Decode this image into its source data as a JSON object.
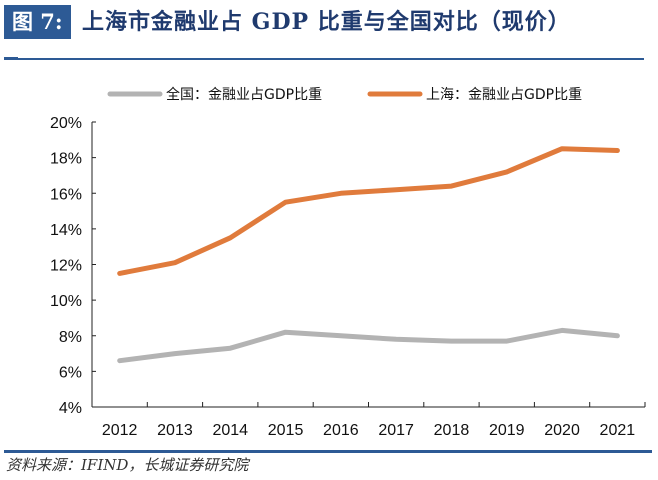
{
  "header": {
    "figure_label": "图 7:",
    "title": "上海市金融业占 GDP 比重与全国对比（现价）"
  },
  "footer": {
    "source": "资料来源：IFIND，长城证券研究院"
  },
  "colors": {
    "national": "#b3b3b3",
    "shanghai": "#e07b3c",
    "accent": "#2d5a95"
  },
  "chart_data": {
    "type": "line",
    "title": "上海市金融业占 GDP 比重与全国对比（现价）",
    "xlabel": "",
    "ylabel": "",
    "categories": [
      "2012",
      "2013",
      "2014",
      "2015",
      "2016",
      "2017",
      "2018",
      "2019",
      "2020",
      "2021"
    ],
    "ylim": [
      4,
      20
    ],
    "yticks": [
      "4%",
      "6%",
      "8%",
      "10%",
      "12%",
      "14%",
      "16%",
      "18%",
      "20%"
    ],
    "ytick_values": [
      4,
      6,
      8,
      10,
      12,
      14,
      16,
      18,
      20
    ],
    "grid": false,
    "legend_position": "top",
    "series": [
      {
        "name": "全国：金融业占GDP比重",
        "color": "#b3b3b3",
        "values": [
          6.6,
          7.0,
          7.3,
          8.2,
          8.0,
          7.8,
          7.7,
          7.7,
          8.3,
          8.0
        ]
      },
      {
        "name": "上海：金融业占GDP比重",
        "color": "#e07b3c",
        "values": [
          11.5,
          12.1,
          13.5,
          15.5,
          16.0,
          16.2,
          16.4,
          17.2,
          18.5,
          18.4
        ]
      }
    ]
  }
}
